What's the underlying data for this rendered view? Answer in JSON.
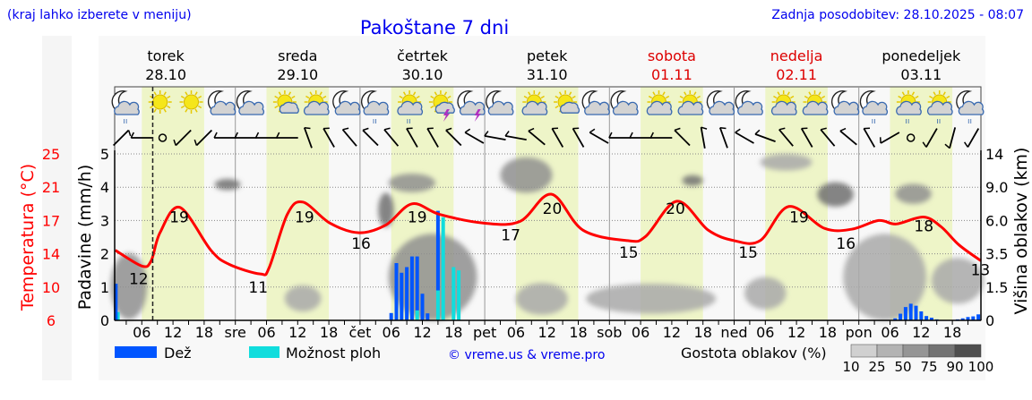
{
  "header": {
    "hint": "(kraj lahko izberete v meniju)",
    "title": "Pakoštane 7 dni",
    "updated": "Zadnja posodobitev: 28.10.2025 - 08:07"
  },
  "colors": {
    "temperature": "#ff0000",
    "rain": "#0055ff",
    "showers": "#11dddd",
    "daylight": "#eef5c8",
    "weekend": "#dd0000"
  },
  "days": [
    {
      "name": "torek",
      "date": "28.10",
      "weekend": false
    },
    {
      "name": "sreda",
      "date": "29.10",
      "weekend": false
    },
    {
      "name": "četrtek",
      "date": "30.10",
      "weekend": false
    },
    {
      "name": "petek",
      "date": "31.10",
      "weekend": false
    },
    {
      "name": "sobota",
      "date": "01.11",
      "weekend": true
    },
    {
      "name": "nedelja",
      "date": "02.11",
      "weekend": true
    },
    {
      "name": "ponedeljek",
      "date": "03.11",
      "weekend": false
    }
  ],
  "x_labels": {
    "hours": [
      "06",
      "12",
      "18"
    ],
    "day_abbr": [
      "",
      "sre",
      "čet",
      "pet",
      "sob",
      "ned",
      "pon"
    ]
  },
  "icons": [
    "night-cloud-rain",
    "sun",
    "sun",
    "night-cloud",
    "night-cloud",
    "sun-smallcloud",
    "sun-cloud",
    "night-cloud",
    "night-cloud-rain",
    "sun-cloud-rain",
    "sun-smallcloud-storm",
    "night-cloud-storm",
    "night-cloud",
    "sun-cloud",
    "sun-smallcloud",
    "night-cloud",
    "night-cloud",
    "sun-cloud",
    "sun-cloud",
    "night-cloud",
    "night-cloud",
    "sun-cloud",
    "sun-cloud",
    "night-cloud",
    "night-cloud-rain",
    "sun-cloud-rain",
    "sun-cloud-rain",
    "night-cloud-rain"
  ],
  "wind": [
    {
      "h": 2,
      "dir": 45
    },
    {
      "h": 6,
      "dir": 270
    },
    {
      "h": 10,
      "dir": null
    },
    {
      "h": 14,
      "dir": 225
    },
    {
      "h": 18,
      "dir": 225
    },
    {
      "h": 22,
      "dir": 270
    },
    {
      "h": 26,
      "dir": 270
    },
    {
      "h": 30,
      "dir": 270
    },
    {
      "h": 34,
      "dir": 270
    },
    {
      "h": 38,
      "dir": 340
    },
    {
      "h": 42,
      "dir": 330
    },
    {
      "h": 46,
      "dir": 320
    },
    {
      "h": 50,
      "dir": 315
    },
    {
      "h": 54,
      "dir": 320
    },
    {
      "h": 58,
      "dir": 330
    },
    {
      "h": 62,
      "dir": 330
    },
    {
      "h": 66,
      "dir": 315
    },
    {
      "h": 70,
      "dir": 300
    },
    {
      "h": 74,
      "dir": 280
    },
    {
      "h": 78,
      "dir": 280
    },
    {
      "h": 82,
      "dir": 310
    },
    {
      "h": 86,
      "dir": 330
    },
    {
      "h": 90,
      "dir": 330
    },
    {
      "h": 94,
      "dir": 300
    },
    {
      "h": 98,
      "dir": 270
    },
    {
      "h": 102,
      "dir": 270
    },
    {
      "h": 106,
      "dir": 270
    },
    {
      "h": 110,
      "dir": 315
    },
    {
      "h": 114,
      "dir": 350
    },
    {
      "h": 118,
      "dir": 340
    },
    {
      "h": 122,
      "dir": 300
    },
    {
      "h": 126,
      "dir": 290
    },
    {
      "h": 130,
      "dir": 320
    },
    {
      "h": 134,
      "dir": 330
    },
    {
      "h": 138,
      "dir": 320
    },
    {
      "h": 142,
      "dir": 310
    },
    {
      "h": 146,
      "dir": 330
    },
    {
      "h": 150,
      "dir": 240
    },
    {
      "h": 154,
      "dir": null
    },
    {
      "h": 158,
      "dir": 210
    },
    {
      "h": 162,
      "dir": 195
    },
    {
      "h": 166,
      "dir": 210
    }
  ],
  "legend": {
    "rain": "Dež",
    "showers": "Možnost ploh",
    "copyright": "© vreme.us & vreme.pro",
    "cloud_density": "Gostota oblakov (%)",
    "density_ticks": [
      "10",
      "25",
      "50",
      "75",
      "90",
      "100"
    ]
  },
  "chart_data": {
    "type": "meteogram",
    "title": "Pakoštane 7 dni",
    "x_unit": "hours from 28.10 00:00",
    "xlim": [
      0.8,
      167.5
    ],
    "now_hour": 8.1,
    "daylight": [
      [
        6,
        18
      ],
      [
        30,
        42
      ],
      [
        54,
        66
      ],
      [
        78,
        90
      ],
      [
        102,
        114
      ],
      [
        126,
        138
      ],
      [
        150,
        162
      ]
    ],
    "axes": {
      "temperature": {
        "label": "Temperatura (°C)",
        "ticks": [
          "25",
          "21",
          "17",
          "14",
          "10",
          "6"
        ],
        "range": [
          6,
          25
        ]
      },
      "precipitation": {
        "label": "Padavine (mm/h)",
        "ticks": [
          "5",
          "4",
          "3",
          "2",
          "1",
          "0"
        ],
        "range": [
          0,
          5
        ]
      },
      "cloud_height": {
        "label": "Višina oblakov (km)",
        "ticks": [
          "14",
          "9.0",
          "6.0",
          "3.5",
          "1.5",
          "0"
        ]
      }
    },
    "temperature": [
      [
        0.9,
        14.0
      ],
      [
        6,
        12.2
      ],
      [
        7.8,
        12.8
      ],
      [
        9.5,
        16.0
      ],
      [
        13.3,
        18.9
      ],
      [
        19.3,
        14.0
      ],
      [
        22.8,
        12.4
      ],
      [
        28.8,
        11.3
      ],
      [
        30.5,
        12.0
      ],
      [
        34,
        18.1
      ],
      [
        37,
        19.5
      ],
      [
        42.2,
        17.1
      ],
      [
        47.8,
        16.0
      ],
      [
        53,
        16.9
      ],
      [
        58,
        19.3
      ],
      [
        63.3,
        18.1
      ],
      [
        71.9,
        17.1
      ],
      [
        78.8,
        17.3
      ],
      [
        84.8,
        20.4
      ],
      [
        90.9,
        16.3
      ],
      [
        99.5,
        15.1
      ],
      [
        103,
        15.6
      ],
      [
        109,
        19.6
      ],
      [
        115,
        16.3
      ],
      [
        120,
        15.1
      ],
      [
        125,
        15.1
      ],
      [
        130.5,
        19.0
      ],
      [
        137.4,
        16.5
      ],
      [
        142.6,
        16.4
      ],
      [
        147.8,
        17.4
      ],
      [
        151.2,
        17.0
      ],
      [
        156.4,
        17.8
      ],
      [
        159.8,
        16.7
      ],
      [
        163.3,
        14.6
      ],
      [
        167.5,
        12.8
      ]
    ],
    "temperature_labels": [
      {
        "h": 5.4,
        "t": 12,
        "text": "12"
      },
      {
        "h": 13.2,
        "t": 19,
        "text": "19"
      },
      {
        "h": 28.4,
        "t": 11,
        "text": "11"
      },
      {
        "h": 37.3,
        "t": 19,
        "text": "19"
      },
      {
        "h": 48.2,
        "t": 16,
        "text": "16"
      },
      {
        "h": 59,
        "t": 19,
        "text": "19"
      },
      {
        "h": 77,
        "t": 17,
        "text": "17"
      },
      {
        "h": 85,
        "t": 20,
        "text": "20"
      },
      {
        "h": 99.7,
        "t": 15,
        "text": "15"
      },
      {
        "h": 108.7,
        "t": 20,
        "text": "20"
      },
      {
        "h": 122.7,
        "t": 15,
        "text": "15"
      },
      {
        "h": 132.5,
        "t": 19,
        "text": "19"
      },
      {
        "h": 141.5,
        "t": 16,
        "text": "16"
      },
      {
        "h": 156.5,
        "t": 18,
        "text": "18"
      },
      {
        "h": 167.4,
        "t": 13,
        "text": "13"
      }
    ],
    "rain": [
      {
        "h": 1,
        "mm": 1.1
      },
      {
        "h": 54,
        "mm": 0.22
      },
      {
        "h": 55,
        "mm": 1.72
      },
      {
        "h": 56,
        "mm": 1.43
      },
      {
        "h": 57,
        "mm": 1.6
      },
      {
        "h": 58,
        "mm": 1.92
      },
      {
        "h": 59,
        "mm": 1.92
      },
      {
        "h": 60,
        "mm": 0.8
      },
      {
        "h": 61,
        "mm": 0.21
      },
      {
        "h": 63,
        "mm": 3.29
      },
      {
        "h": 151,
        "mm": 0.06
      },
      {
        "h": 152,
        "mm": 0.2
      },
      {
        "h": 153,
        "mm": 0.4
      },
      {
        "h": 154,
        "mm": 0.5
      },
      {
        "h": 155,
        "mm": 0.44
      },
      {
        "h": 156,
        "mm": 0.27
      },
      {
        "h": 157,
        "mm": 0.13
      },
      {
        "h": 158,
        "mm": 0.08
      },
      {
        "h": 159,
        "mm": 0.03
      },
      {
        "h": 163,
        "mm": 0.03
      },
      {
        "h": 164,
        "mm": 0.06
      },
      {
        "h": 165,
        "mm": 0.1
      },
      {
        "h": 166,
        "mm": 0.12
      },
      {
        "h": 167,
        "mm": 0.18
      }
    ],
    "showers": [
      {
        "h": 1.4,
        "mm": 0.25
      },
      {
        "h": 59,
        "mm": 0.3
      },
      {
        "h": 63,
        "mm": 0.9
      },
      {
        "h": 64,
        "mm": 3.1
      },
      {
        "h": 66,
        "mm": 1.6
      },
      {
        "h": 67,
        "mm": 1.5
      }
    ],
    "clouds": [
      {
        "h": 3.5,
        "km": 1.8,
        "dh": 7,
        "dkm": 3.5,
        "density": 50
      },
      {
        "h": 22.5,
        "km": 9.5,
        "dh": 5,
        "dkm": 1.5,
        "density": 75
      },
      {
        "h": 37,
        "km": 1.0,
        "dh": 7,
        "dkm": 1.2,
        "density": 40
      },
      {
        "h": 53,
        "km": 7.0,
        "dh": 3,
        "dkm": 3,
        "density": 75
      },
      {
        "h": 58,
        "km": 9.8,
        "dh": 9,
        "dkm": 2.5,
        "density": 70
      },
      {
        "h": 62,
        "km": 2.5,
        "dh": 17,
        "dkm": 5,
        "density": 50
      },
      {
        "h": 80,
        "km": 11,
        "dh": 10,
        "dkm": 5,
        "density": 70
      },
      {
        "h": 83,
        "km": 1.0,
        "dh": 10,
        "dkm": 1.5,
        "density": 40
      },
      {
        "h": 104,
        "km": 1.0,
        "dh": 25,
        "dkm": 1.4,
        "density": 40
      },
      {
        "h": 112,
        "km": 10,
        "dh": 4,
        "dkm": 1,
        "density": 80
      },
      {
        "h": 126,
        "km": 1.3,
        "dh": 8,
        "dkm": 1.6,
        "density": 45
      },
      {
        "h": 130,
        "km": 13,
        "dh": 10,
        "dkm": 3,
        "density": 30
      },
      {
        "h": 139.5,
        "km": 8.5,
        "dh": 7,
        "dkm": 2.5,
        "density": 85
      },
      {
        "h": 149,
        "km": 2.5,
        "dh": 16,
        "dkm": 5,
        "density": 45
      },
      {
        "h": 154.5,
        "km": 8.5,
        "dh": 7,
        "dkm": 2,
        "density": 50
      },
      {
        "h": 163,
        "km": 2.0,
        "dh": 10,
        "dkm": 2.5,
        "density": 35
      }
    ]
  }
}
